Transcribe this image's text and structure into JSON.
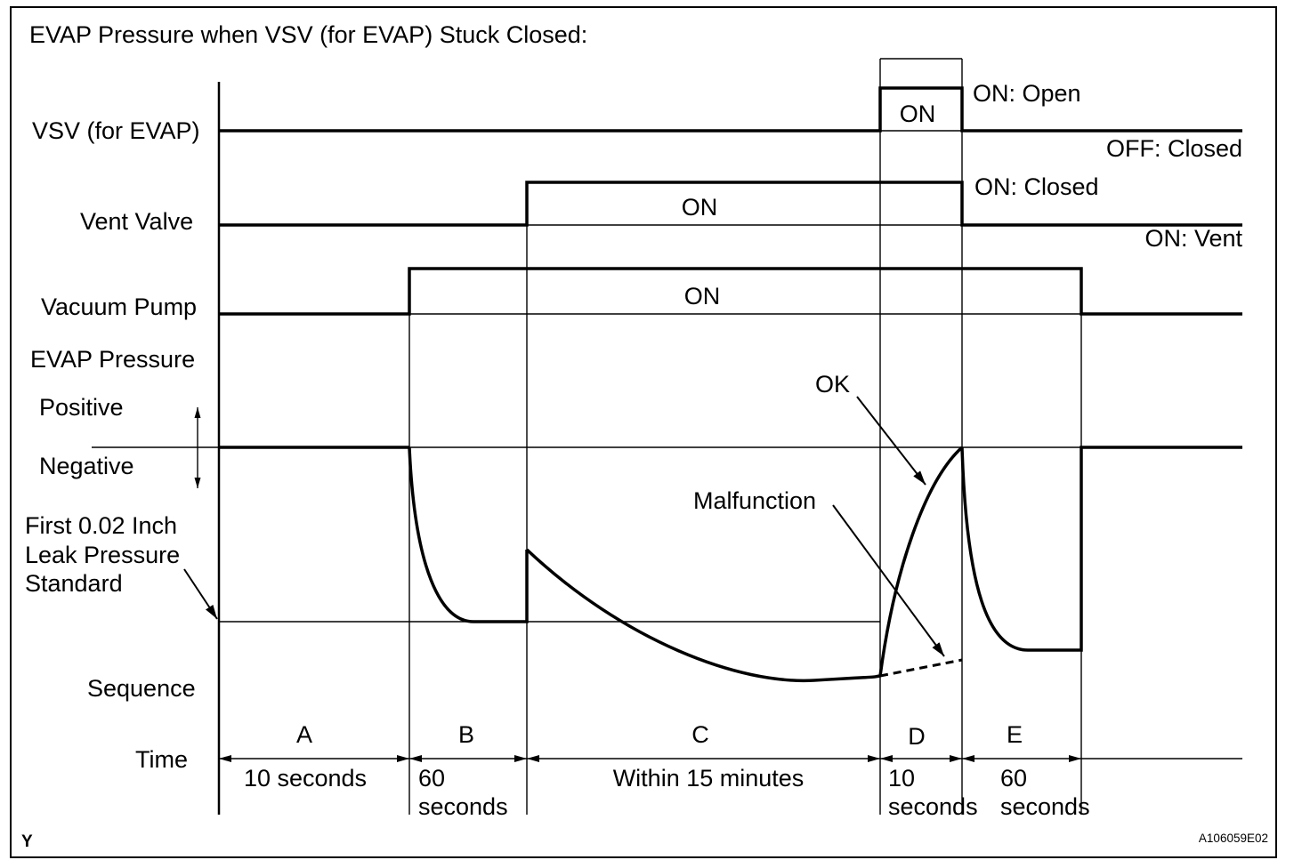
{
  "title": "EVAP Pressure when VSV (for EVAP) Stuck Closed:",
  "vsv": {
    "label": "VSV (for EVAP)",
    "on_label": "ON",
    "high_state": "ON: Open",
    "low_state": "OFF: Closed"
  },
  "vent_valve": {
    "label": "Vent Valve",
    "on_label": "ON",
    "high_state": "ON: Closed",
    "low_state": "ON: Vent"
  },
  "vacuum_pump": {
    "label": "Vacuum Pump",
    "on_label": "ON"
  },
  "evap_pressure": {
    "label": "EVAP Pressure",
    "positive_label": "Positive",
    "negative_label": "Negative",
    "standard_label": [
      "First 0.02 Inch",
      "Leak Pressure",
      "Standard"
    ],
    "ok_label": "OK",
    "malfunction_label": "Malfunction"
  },
  "sequence": {
    "label": "Sequence",
    "time_label": "Time",
    "steps": [
      {
        "id": "A",
        "time": [
          "10 seconds"
        ]
      },
      {
        "id": "B",
        "time": [
          "60",
          "seconds"
        ]
      },
      {
        "id": "C",
        "time": [
          "Within 15 minutes"
        ]
      },
      {
        "id": "D",
        "time": [
          "10",
          "seconds"
        ]
      },
      {
        "id": "E",
        "time": [
          "60",
          "seconds"
        ]
      }
    ]
  },
  "footer": {
    "corner_mark": "Y",
    "figure_id": "A106059E02"
  }
}
